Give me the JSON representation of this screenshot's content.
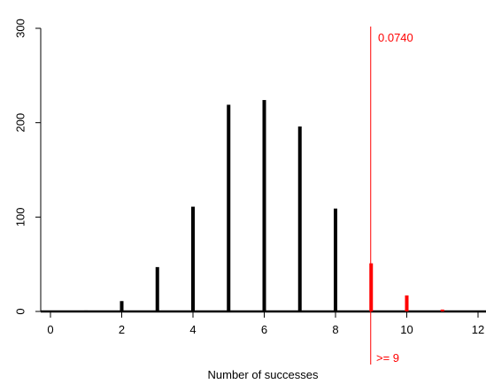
{
  "chart_data": {
    "type": "bar",
    "title": "",
    "xlabel": "Number of successes",
    "ylabel": "",
    "xlim": [
      -0.5,
      12
    ],
    "ylim": [
      0,
      300
    ],
    "xticks": [
      0,
      2,
      4,
      6,
      8,
      10,
      12
    ],
    "yticks": [
      0,
      100,
      200,
      300
    ],
    "x": [
      1,
      2,
      3,
      4,
      5,
      6,
      7,
      8,
      9,
      10,
      11
    ],
    "values": [
      1,
      11,
      47,
      111,
      219,
      224,
      196,
      109,
      51,
      17,
      2
    ],
    "threshold": 9,
    "threshold_label": ">= 9",
    "p_value_label": "0.0740",
    "colors": {
      "bar": "#000000",
      "highlight": "#ff0000",
      "axis": "#000000"
    },
    "grid": false
  }
}
